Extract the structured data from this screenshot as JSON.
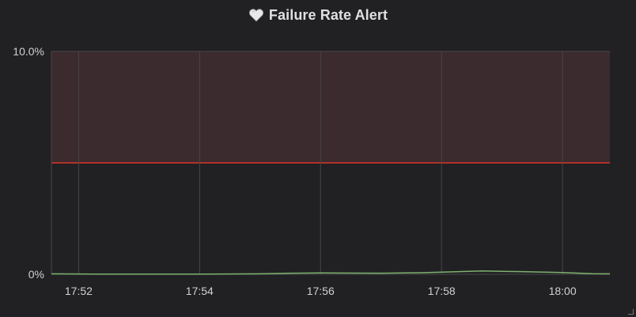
{
  "panel": {
    "title": "Failure Rate Alert",
    "icon": "heart-icon"
  },
  "colors": {
    "background": "#212124",
    "grid": "#464649",
    "threshold_fill": "#3b2a2e",
    "threshold_line": "#b3312b",
    "series": "#7eb26d"
  },
  "chart_data": {
    "type": "line",
    "title": "Failure Rate Alert",
    "xlabel": "",
    "ylabel": "",
    "x_ticks": [
      "17:52",
      "17:54",
      "17:56",
      "17:58",
      "18:00"
    ],
    "y_ticks": [
      "0%",
      "10.0%"
    ],
    "xlim": [
      "17:51:33",
      "18:00:47"
    ],
    "ylim": [
      0,
      10
    ],
    "y_unit": "%",
    "grid": "vertical",
    "legend": "none",
    "threshold": {
      "value": 5,
      "fill_above": true
    },
    "series": [
      {
        "x": [
          "17:51:33",
          "17:52:20",
          "17:53:00",
          "17:54:00",
          "17:55:00",
          "17:55:30",
          "17:56:00",
          "17:57:00",
          "17:57:40",
          "17:58:40",
          "17:59:20",
          "18:00:00",
          "18:00:30",
          "18:00:47"
        ],
        "y": [
          0.02,
          0.01,
          0.01,
          0.01,
          0.02,
          0.05,
          0.06,
          0.05,
          0.07,
          0.15,
          0.12,
          0.08,
          0.03,
          0.02
        ]
      }
    ]
  }
}
